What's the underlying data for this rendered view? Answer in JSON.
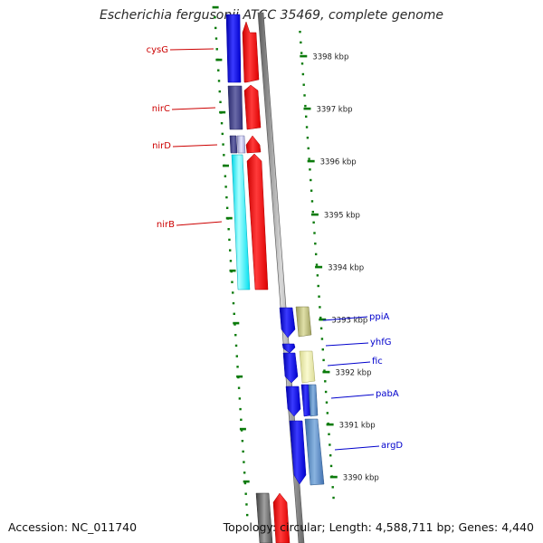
{
  "title": "Escherichia fergusonii ATCC 35469, complete genome",
  "footer": {
    "accession": "Accession: NC_011740",
    "topology": "Topology: circular; Length: 4,588,711 bp; Genes: 4,440"
  },
  "ruler": {
    "ticks": [
      {
        "label": "3398 kbp"
      },
      {
        "label": "3397 kbp"
      },
      {
        "label": "3396 kbp"
      },
      {
        "label": "3395 kbp"
      },
      {
        "label": "3394 kbp"
      },
      {
        "label": "3393 kbp"
      },
      {
        "label": "3392 kbp"
      },
      {
        "label": "3391 kbp"
      },
      {
        "label": "3390 kbp"
      }
    ]
  },
  "genes": [
    {
      "name": "cysG",
      "color": "#cc0000"
    },
    {
      "name": "nirC",
      "color": "#cc0000"
    },
    {
      "name": "nirD",
      "color": "#cc0000"
    },
    {
      "name": "nirB",
      "color": "#cc0000"
    },
    {
      "name": "ppiA",
      "color": "#0000cc"
    },
    {
      "name": "yhfG",
      "color": "#0000cc"
    },
    {
      "name": "fic",
      "color": "#0000cc"
    },
    {
      "name": "pabA",
      "color": "#0000cc"
    },
    {
      "name": "argD",
      "color": "#0000cc"
    }
  ],
  "colors": {
    "forward_strand": "#0000ff",
    "reverse_strand": "#ff0000",
    "backbone": "#808080",
    "ticks": "#0a7a0a"
  }
}
